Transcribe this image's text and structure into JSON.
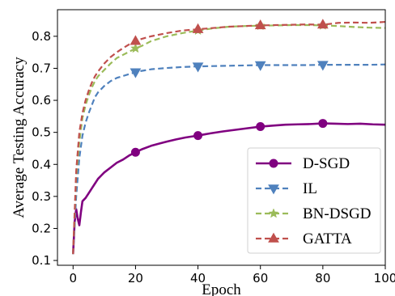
{
  "chart_data": {
    "type": "line",
    "title": "",
    "xlabel": "Epoch",
    "ylabel": "Average Testing Accuracy",
    "xlim": [
      -5,
      100
    ],
    "ylim": [
      0.085,
      0.883
    ],
    "xticks": [
      0,
      20,
      40,
      60,
      80,
      100
    ],
    "xtick_labels": [
      "0",
      "20",
      "40",
      "60",
      "80",
      "100"
    ],
    "yticks": [
      0.1,
      0.2,
      0.3,
      0.4,
      0.5,
      0.6,
      0.7,
      0.8
    ],
    "ytick_labels": [
      "0.1",
      "0.2",
      "0.3",
      "0.4",
      "0.5",
      "0.6",
      "0.7",
      "0.8"
    ],
    "grid": false,
    "legend_position": "lower-right",
    "series": [
      {
        "name": "D-SGD",
        "color": "#800080",
        "line_style": "solid",
        "marker": "circle",
        "marker_x": [
          20,
          40,
          60,
          80
        ],
        "x": [
          0,
          0.5,
          1,
          1.5,
          2,
          2.5,
          3,
          4,
          5,
          6,
          7,
          8,
          9,
          10,
          12,
          14,
          16,
          18,
          20,
          22,
          25,
          28,
          30,
          33,
          36,
          40,
          44,
          48,
          52,
          56,
          60,
          64,
          68,
          72,
          76,
          80,
          84,
          88,
          92,
          96,
          100
        ],
        "y": [
          0.12,
          0.22,
          0.26,
          0.23,
          0.21,
          0.25,
          0.285,
          0.295,
          0.31,
          0.325,
          0.34,
          0.355,
          0.365,
          0.375,
          0.39,
          0.405,
          0.415,
          0.428,
          0.438,
          0.447,
          0.458,
          0.466,
          0.471,
          0.478,
          0.484,
          0.49,
          0.497,
          0.503,
          0.508,
          0.513,
          0.518,
          0.521,
          0.524,
          0.525,
          0.526,
          0.528,
          0.527,
          0.526,
          0.527,
          0.525,
          0.524
        ]
      },
      {
        "name": "IL",
        "color": "#4f81bd",
        "line_style": "dashed",
        "marker": "triangle-down",
        "marker_x": [
          20,
          40,
          60,
          80
        ],
        "x": [
          0,
          1,
          2,
          3,
          4,
          5,
          6,
          7,
          8,
          10,
          12,
          14,
          16,
          18,
          20,
          22,
          25,
          30,
          35,
          40,
          45,
          50,
          55,
          60,
          65,
          70,
          75,
          80,
          85,
          90,
          95,
          100
        ],
        "y": [
          0.12,
          0.3,
          0.42,
          0.49,
          0.53,
          0.56,
          0.585,
          0.61,
          0.625,
          0.645,
          0.66,
          0.67,
          0.676,
          0.682,
          0.688,
          0.692,
          0.697,
          0.701,
          0.704,
          0.706,
          0.707,
          0.708,
          0.709,
          0.71,
          0.71,
          0.71,
          0.71,
          0.711,
          0.711,
          0.711,
          0.711,
          0.712
        ]
      },
      {
        "name": "BN-DSGD",
        "color": "#9bbb59",
        "line_style": "dashed",
        "marker": "star",
        "marker_x": [
          20,
          40,
          60,
          80
        ],
        "x": [
          0,
          1,
          2,
          3,
          4,
          5,
          6,
          7,
          8,
          10,
          12,
          14,
          16,
          18,
          20,
          22,
          25,
          30,
          35,
          40,
          45,
          50,
          55,
          60,
          65,
          70,
          75,
          80,
          85,
          90,
          95,
          100
        ],
        "y": [
          0.12,
          0.36,
          0.47,
          0.545,
          0.585,
          0.615,
          0.64,
          0.66,
          0.675,
          0.695,
          0.715,
          0.732,
          0.742,
          0.752,
          0.762,
          0.77,
          0.785,
          0.8,
          0.81,
          0.818,
          0.825,
          0.83,
          0.832,
          0.833,
          0.834,
          0.835,
          0.835,
          0.834,
          0.832,
          0.829,
          0.827,
          0.826
        ]
      },
      {
        "name": "GATTA",
        "color": "#c0504d",
        "line_style": "dashed",
        "marker": "triangle-up",
        "marker_x": [
          20,
          40,
          60,
          80
        ],
        "x": [
          0,
          1,
          2,
          3,
          4,
          5,
          6,
          7,
          8,
          10,
          12,
          14,
          16,
          18,
          20,
          22,
          25,
          30,
          35,
          40,
          45,
          50,
          55,
          60,
          65,
          70,
          75,
          80,
          85,
          90,
          95,
          100
        ],
        "y": [
          0.12,
          0.38,
          0.5,
          0.56,
          0.6,
          0.63,
          0.655,
          0.675,
          0.69,
          0.715,
          0.735,
          0.75,
          0.763,
          0.775,
          0.785,
          0.792,
          0.8,
          0.81,
          0.818,
          0.822,
          0.826,
          0.83,
          0.832,
          0.834,
          0.835,
          0.836,
          0.837,
          0.836,
          0.842,
          0.843,
          0.842,
          0.845
        ]
      }
    ]
  }
}
